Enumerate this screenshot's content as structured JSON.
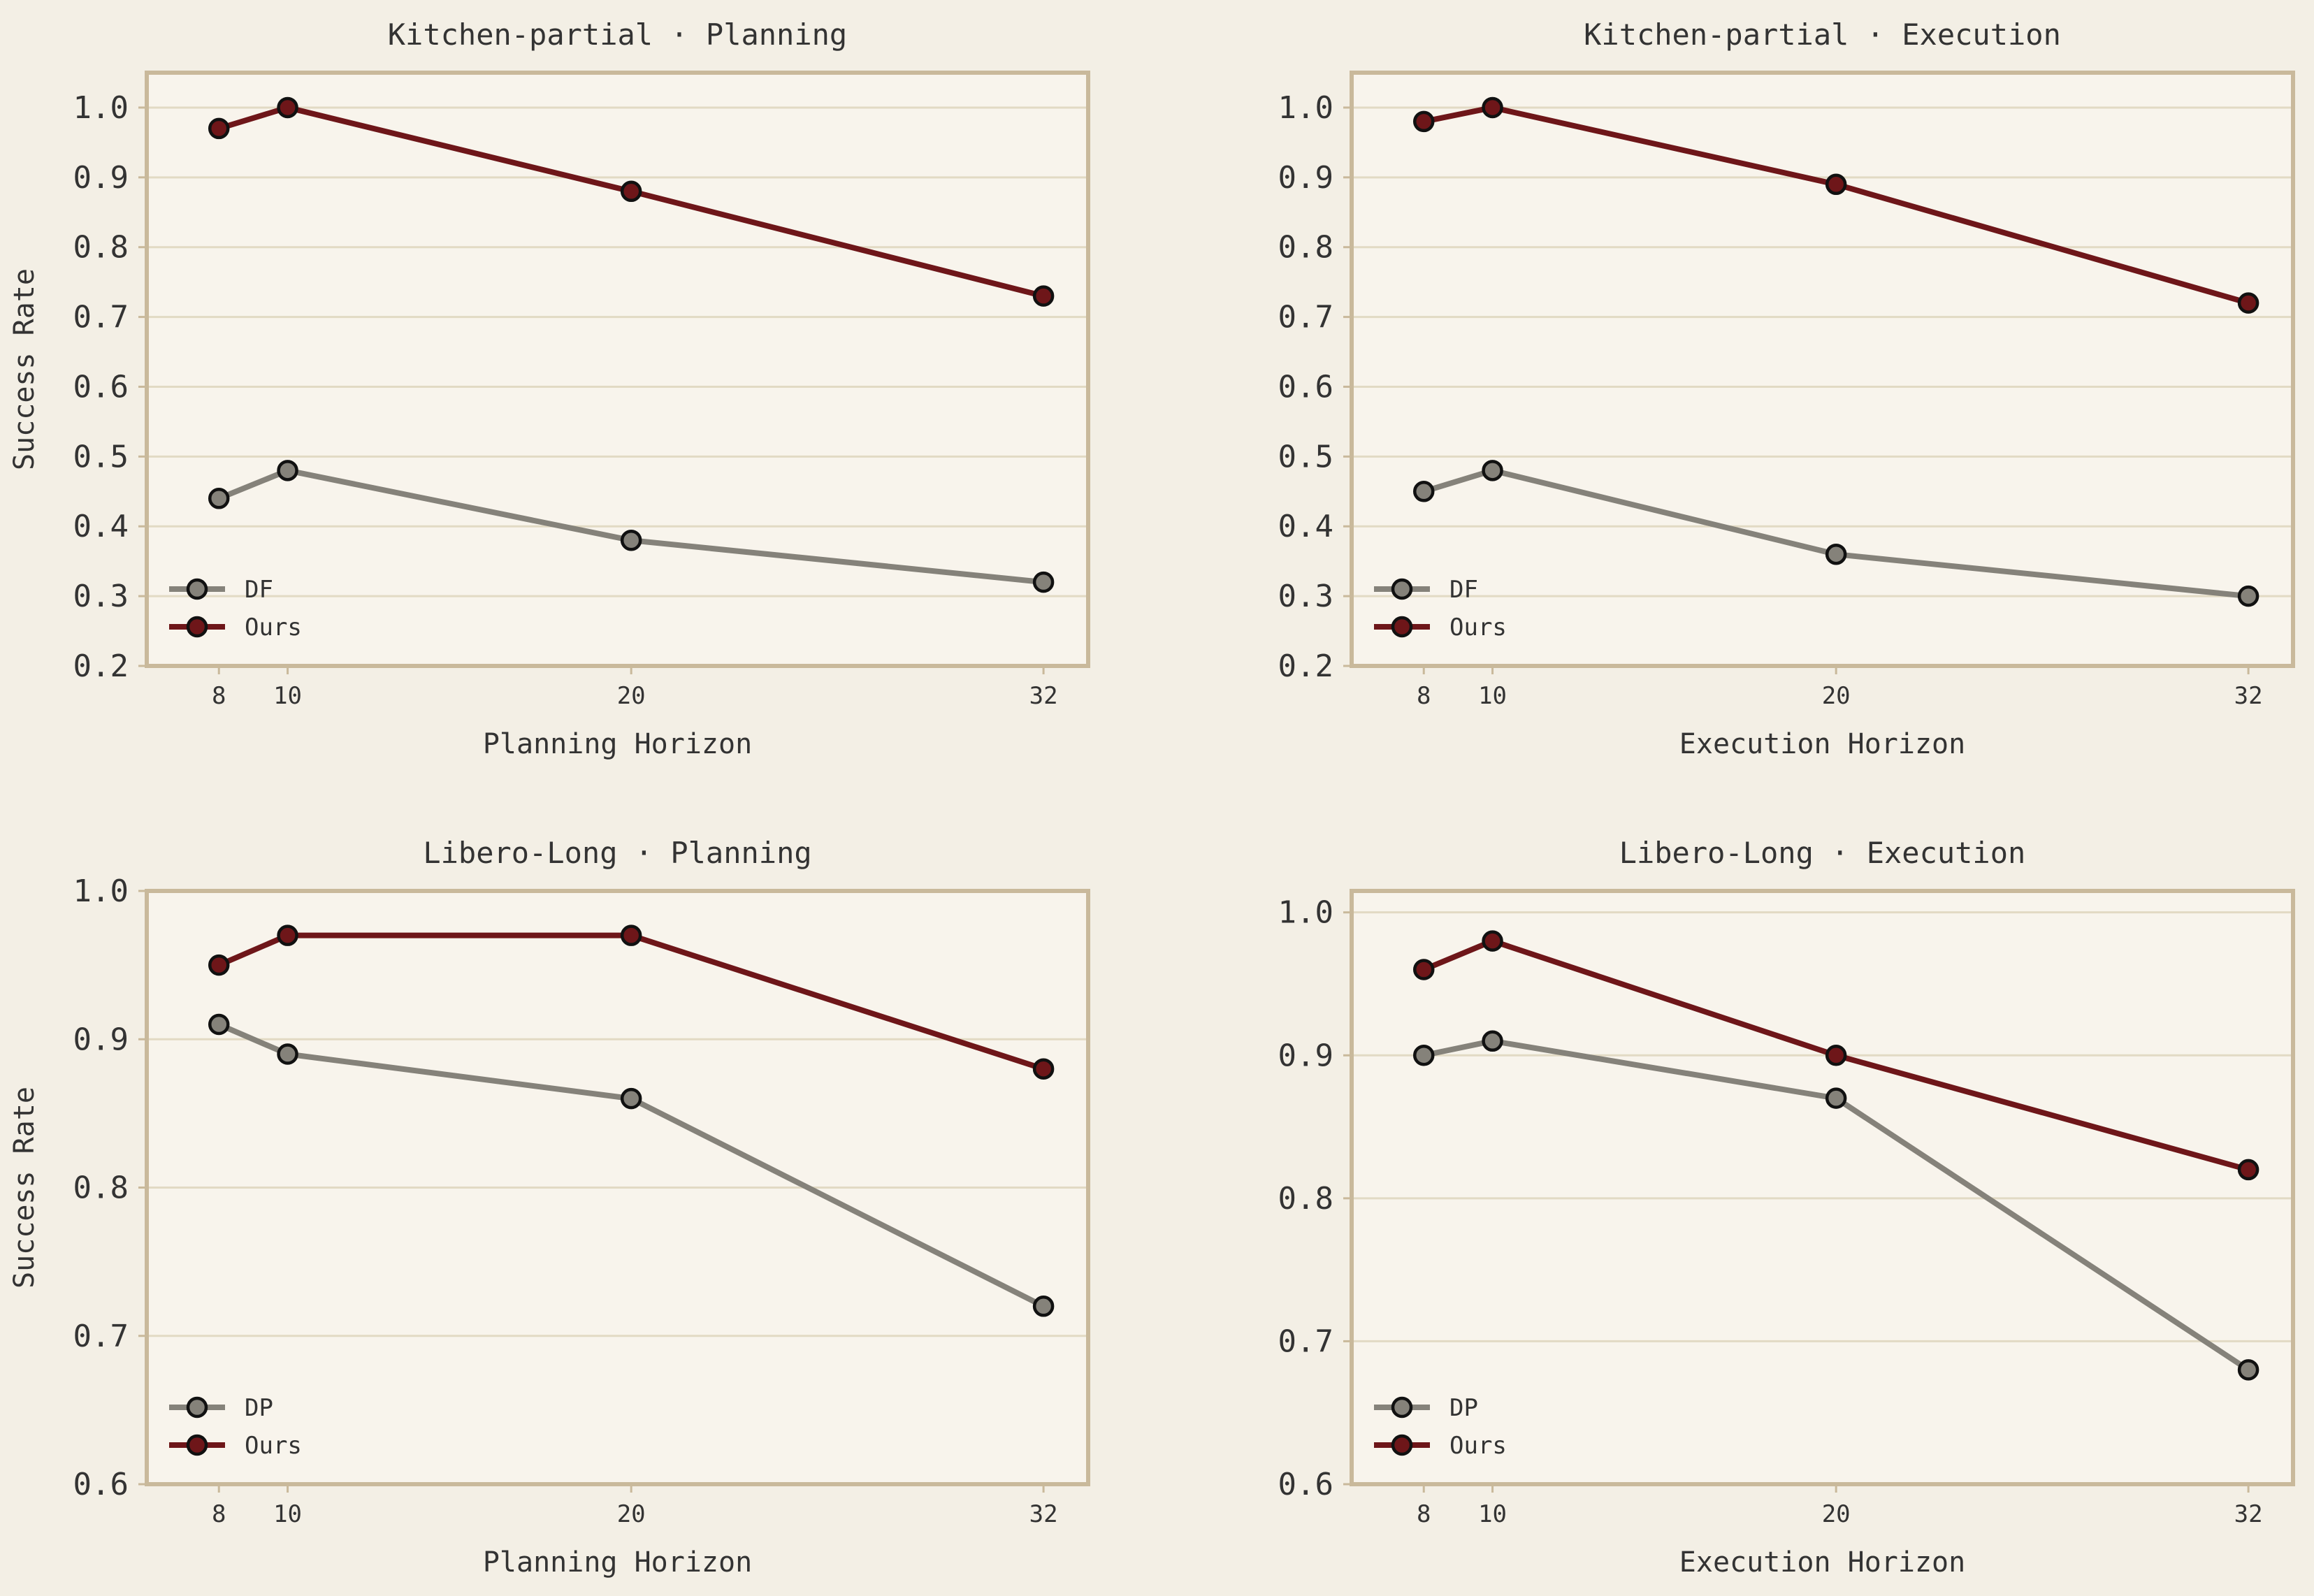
{
  "chart_data": [
    {
      "type": "line",
      "title": "Kitchen-partial · Planning",
      "xlabel": "Planning Horizon",
      "ylabel": "Success Rate",
      "x": [
        8,
        10,
        20,
        32
      ],
      "xticks": [
        8,
        10,
        20,
        32
      ],
      "ylim": [
        0.2,
        1.05
      ],
      "yticks": [
        0.2,
        0.3,
        0.4,
        0.5,
        0.6,
        0.7,
        0.8,
        0.9,
        1.0
      ],
      "grid": "horizontal",
      "legend": "lower-left",
      "series": [
        {
          "name": "DF",
          "values": [
            0.44,
            0.48,
            0.38,
            0.32
          ],
          "color": "#85827a"
        },
        {
          "name": "Ours",
          "values": [
            0.97,
            1.0,
            0.88,
            0.73
          ],
          "color": "#6e1619"
        }
      ]
    },
    {
      "type": "line",
      "title": "Kitchen-partial · Execution",
      "xlabel": "Execution Horizon",
      "ylabel": "",
      "x": [
        8,
        10,
        20,
        32
      ],
      "xticks": [
        8,
        10,
        20,
        32
      ],
      "ylim": [
        0.2,
        1.05
      ],
      "yticks": [
        0.2,
        0.3,
        0.4,
        0.5,
        0.6,
        0.7,
        0.8,
        0.9,
        1.0
      ],
      "grid": "horizontal",
      "legend": "lower-left",
      "series": [
        {
          "name": "DF",
          "values": [
            0.45,
            0.48,
            0.36,
            0.3
          ],
          "color": "#85827a"
        },
        {
          "name": "Ours",
          "values": [
            0.98,
            1.0,
            0.89,
            0.72
          ],
          "color": "#6e1619"
        }
      ]
    },
    {
      "type": "line",
      "title": "Libero-Long · Planning",
      "xlabel": "Planning Horizon",
      "ylabel": "Success Rate",
      "x": [
        8,
        10,
        20,
        32
      ],
      "xticks": [
        8,
        10,
        20,
        32
      ],
      "ylim": [
        0.6,
        1.0
      ],
      "yticks": [
        0.6,
        0.7,
        0.8,
        0.9,
        1.0
      ],
      "grid": "horizontal",
      "legend": "lower-left",
      "series": [
        {
          "name": "DP",
          "values": [
            0.91,
            0.89,
            0.86,
            0.72
          ],
          "color": "#85827a"
        },
        {
          "name": "Ours",
          "values": [
            0.95,
            0.97,
            0.97,
            0.88
          ],
          "color": "#6e1619"
        }
      ]
    },
    {
      "type": "line",
      "title": "Libero-Long · Execution",
      "xlabel": "Execution Horizon",
      "ylabel": "",
      "x": [
        8,
        10,
        20,
        32
      ],
      "xticks": [
        8,
        10,
        20,
        32
      ],
      "ylim": [
        0.6,
        1.015
      ],
      "yticks": [
        0.6,
        0.7,
        0.8,
        0.9,
        1.0
      ],
      "grid": "horizontal",
      "legend": "lower-left",
      "series": [
        {
          "name": "DP",
          "values": [
            0.9,
            0.91,
            0.87,
            0.68
          ],
          "color": "#85827a"
        },
        {
          "name": "Ours",
          "values": [
            0.96,
            0.98,
            0.9,
            0.82
          ],
          "color": "#6e1619"
        }
      ]
    }
  ]
}
